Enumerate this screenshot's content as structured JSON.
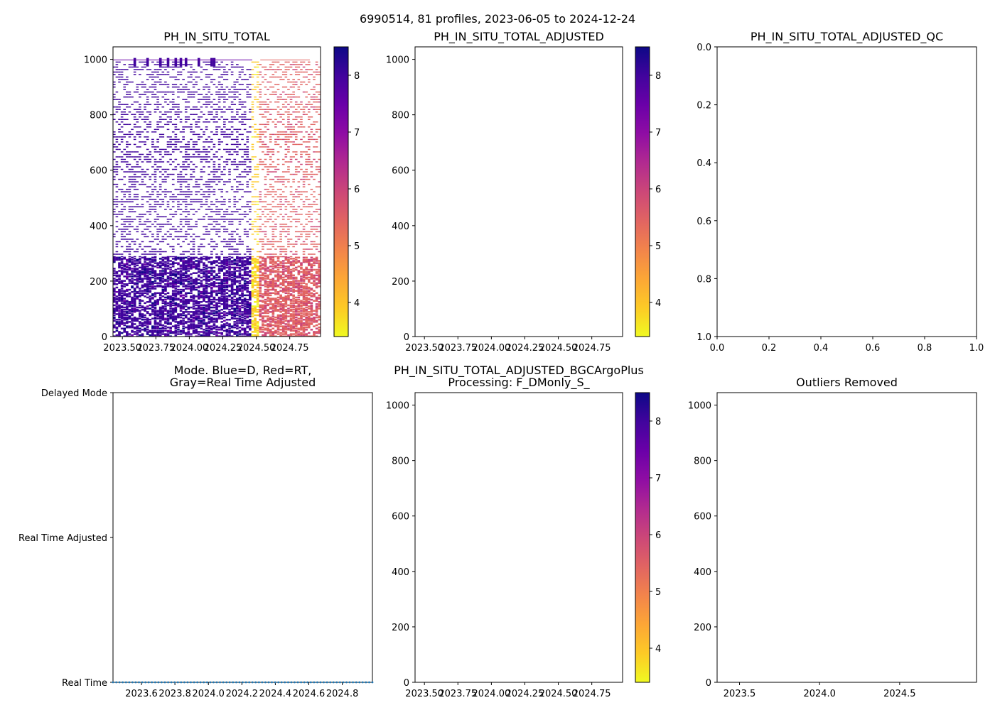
{
  "figure": {
    "suptitle": "6990514, 81 profiles, 2023-06-05 to 2024-12-24"
  },
  "colors": {
    "mode_dots": "#1f77b4",
    "axes": "#000000"
  },
  "chart_data": [
    {
      "id": "ph_raw",
      "type": "heatmap",
      "title": "PH_IN_SITU_TOTAL",
      "x_range": [
        2023.43,
        2024.98
      ],
      "y_range": [
        1045,
        0
      ],
      "x_ticks": [
        2023.5,
        2023.75,
        2024.0,
        2024.25,
        2024.5,
        2024.75
      ],
      "x_tick_labels": [
        "2023.50",
        "2023.75",
        "2024.00",
        "2024.25",
        "2024.50",
        "2024.75"
      ],
      "y_ticks": [
        0,
        200,
        400,
        600,
        800,
        1000
      ],
      "y_tick_labels": [
        "0",
        "200",
        "400",
        "600",
        "800",
        "1000"
      ],
      "colormap": "plasma_r",
      "profiles": 81,
      "profile_date_range": [
        2023.43,
        2024.98
      ],
      "value_regimes": [
        {
          "x_range": [
            2023.43,
            2024.47
          ],
          "value": 8.0
        },
        {
          "x_range": [
            2024.47,
            2024.53
          ],
          "value": 3.8
        },
        {
          "x_range": [
            2024.53,
            2024.98
          ],
          "value": 5.6
        }
      ],
      "dense_sampling_depth_max": 290,
      "sparse_sampling_depth_max": 1000,
      "colorbar": {
        "range": [
          3.4,
          8.5
        ],
        "ticks": [
          4,
          5,
          6,
          7,
          8
        ],
        "tick_labels": [
          "4",
          "5",
          "6",
          "7",
          "8"
        ]
      }
    },
    {
      "id": "ph_adjusted",
      "type": "heatmap",
      "title": "PH_IN_SITU_TOTAL_ADJUSTED",
      "x_range": [
        2023.43,
        2024.98
      ],
      "y_range": [
        1045,
        0
      ],
      "x_ticks": [
        2023.5,
        2023.75,
        2024.0,
        2024.25,
        2024.5,
        2024.75
      ],
      "x_tick_labels": [
        "2023.50",
        "2023.75",
        "2024.00",
        "2024.25",
        "2024.50",
        "2024.75"
      ],
      "y_ticks": [
        0,
        200,
        400,
        600,
        800,
        1000
      ],
      "y_tick_labels": [
        "0",
        "200",
        "400",
        "600",
        "800",
        "1000"
      ],
      "values": [],
      "colorbar": {
        "range": [
          3.4,
          8.5
        ],
        "ticks": [
          4,
          5,
          6,
          7,
          8
        ],
        "tick_labels": [
          "4",
          "5",
          "6",
          "7",
          "8"
        ]
      }
    },
    {
      "id": "ph_adjusted_qc",
      "type": "scatter",
      "title": "PH_IN_SITU_TOTAL_ADJUSTED_QC",
      "x_range": [
        0,
        1
      ],
      "y_range": [
        0,
        1
      ],
      "x_ticks": [
        0,
        0.2,
        0.4,
        0.6,
        0.8,
        1.0
      ],
      "x_tick_labels": [
        "0.0",
        "0.2",
        "0.4",
        "0.6",
        "0.8",
        "1.0"
      ],
      "y_ticks": [
        0,
        0.2,
        0.4,
        0.6,
        0.8,
        1.0
      ],
      "y_tick_labels": [
        "0.0",
        "0.2",
        "0.4",
        "0.6",
        "0.8",
        "1.0"
      ],
      "values": []
    },
    {
      "id": "mode",
      "type": "scatter",
      "title_line1": "Mode. Blue=D, Red=RT,",
      "title_line2": "Gray=Real Time Adjusted",
      "x_range": [
        2023.43,
        2024.98
      ],
      "y_categories": [
        "Real Time",
        "Real Time Adjusted",
        "Delayed Mode"
      ],
      "x_ticks": [
        2023.6,
        2023.8,
        2024.0,
        2024.2,
        2024.4,
        2024.6,
        2024.8
      ],
      "x_tick_labels": [
        "2023.6",
        "2023.8",
        "2024.0",
        "2024.2",
        "2024.4",
        "2024.6",
        "2024.8"
      ],
      "y_tick_labels": [
        "Real Time",
        "Real Time Adjusted",
        "Delayed Mode"
      ],
      "series": [
        {
          "name": "Real Time",
          "y": "Real Time",
          "count": 81,
          "x_start": 2023.43,
          "x_end": 2024.98
        }
      ]
    },
    {
      "id": "ph_bgcargoplus",
      "type": "heatmap",
      "title_line1": "PH_IN_SITU_TOTAL_ADJUSTED_BGCArgoPlus",
      "title_line2": "Processing: F_DMonly_S_",
      "x_range": [
        2023.43,
        2024.98
      ],
      "y_range": [
        1045,
        0
      ],
      "x_ticks": [
        2023.5,
        2023.75,
        2024.0,
        2024.25,
        2024.5,
        2024.75
      ],
      "x_tick_labels": [
        "2023.50",
        "2023.75",
        "2024.00",
        "2024.25",
        "2024.50",
        "2024.75"
      ],
      "y_ticks": [
        0,
        200,
        400,
        600,
        800,
        1000
      ],
      "y_tick_labels": [
        "0",
        "200",
        "400",
        "600",
        "800",
        "1000"
      ],
      "values": [],
      "colorbar": {
        "range": [
          3.4,
          8.5
        ],
        "ticks": [
          4,
          5,
          6,
          7,
          8
        ],
        "tick_labels": [
          "4",
          "5",
          "6",
          "7",
          "8"
        ]
      }
    },
    {
      "id": "outliers",
      "type": "scatter",
      "title": "Outliers Removed",
      "x_range": [
        2023.36,
        2024.98
      ],
      "y_range": [
        1045,
        0
      ],
      "x_ticks": [
        2023.5,
        2024.0,
        2024.5
      ],
      "x_tick_labels": [
        "2023.5",
        "2024.0",
        "2024.5"
      ],
      "y_ticks": [
        0,
        200,
        400,
        600,
        800,
        1000
      ],
      "y_tick_labels": [
        "0",
        "200",
        "400",
        "600",
        "800",
        "1000"
      ],
      "values": []
    }
  ]
}
